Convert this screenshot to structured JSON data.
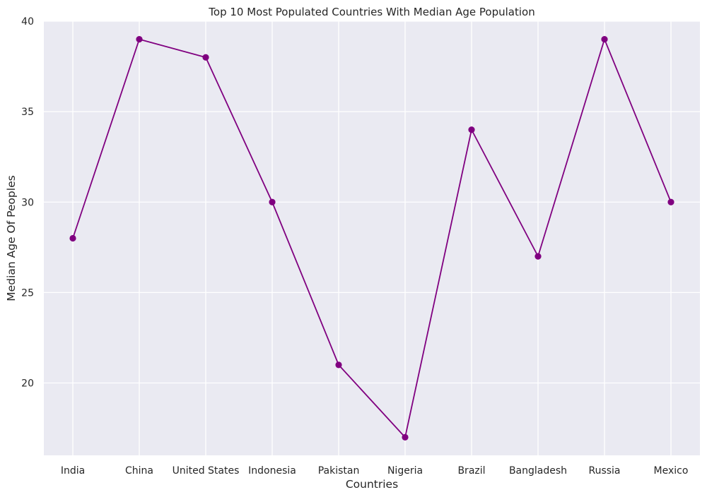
{
  "chart_data": {
    "type": "line",
    "title": "Top 10  Most Populated Countries With Median Age Population",
    "xlabel": "Countries",
    "ylabel": "Median Age Of Peoples",
    "categories": [
      "India",
      "China",
      "United States",
      "Indonesia",
      "Pakistan",
      "Nigeria",
      "Brazil",
      "Bangladesh",
      "Russia",
      "Mexico"
    ],
    "series": [
      {
        "values": [
          28,
          39,
          38,
          30,
          21,
          17,
          34,
          27,
          39,
          30
        ],
        "color": "#800080",
        "marker": "circle"
      }
    ],
    "ylim": [
      16.0,
      40.0
    ],
    "yticks": [
      20,
      25,
      30,
      35,
      40
    ],
    "grid": true,
    "background_color": "#eaeaf2",
    "grid_color": "#ffffff"
  }
}
